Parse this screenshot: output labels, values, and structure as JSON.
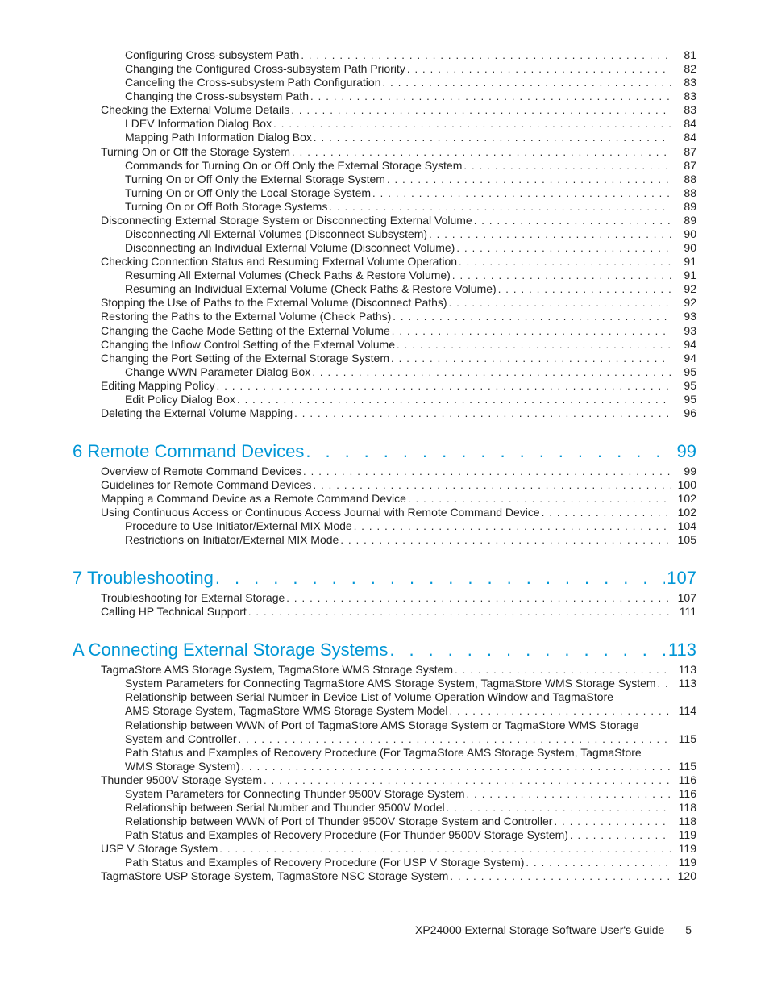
{
  "colors": {
    "accent": "#0096d6",
    "text": "#222222",
    "background": "#ffffff"
  },
  "typography": {
    "body_size_pt": 10,
    "chapter_size_pt": 17,
    "family": "Helvetica Neue Light"
  },
  "footer": {
    "title": "XP24000 External Storage Software User's Guide",
    "page": "5"
  },
  "sections": [
    {
      "type": "flat",
      "entries": [
        {
          "level": 1,
          "title": "Configuring Cross-subsystem Path",
          "page": "81"
        },
        {
          "level": 1,
          "title": "Changing the Configured Cross-subsystem Path Priority",
          "page": "82"
        },
        {
          "level": 1,
          "title": "Canceling the Cross-subsystem Path Configuration",
          "page": "83"
        },
        {
          "level": 1,
          "title": "Changing the Cross-subsystem Path",
          "page": "83"
        },
        {
          "level": 0,
          "title": "Checking the External Volume Details",
          "page": "83"
        },
        {
          "level": 1,
          "title": "LDEV Information Dialog Box",
          "page": "84"
        },
        {
          "level": 1,
          "title": "Mapping Path Information Dialog Box",
          "page": "84"
        },
        {
          "level": 0,
          "title": "Turning On or Off the Storage System",
          "page": "87"
        },
        {
          "level": 1,
          "title": "Commands for Turning On or Off Only the External Storage System",
          "page": "87"
        },
        {
          "level": 1,
          "title": "Turning On or Off Only the External Storage System",
          "page": "88"
        },
        {
          "level": 1,
          "title": "Turning On or Off Only the Local Storage System",
          "page": "88"
        },
        {
          "level": 1,
          "title": "Turning On or Off Both Storage Systems",
          "page": "89"
        },
        {
          "level": 0,
          "title": "Disconnecting External Storage System or Disconnecting External Volume",
          "page": "89"
        },
        {
          "level": 1,
          "title": "Disconnecting All External Volumes (Disconnect Subsystem)",
          "page": "90"
        },
        {
          "level": 1,
          "title": "Disconnecting an Individual External Volume (Disconnect Volume)",
          "page": "90"
        },
        {
          "level": 0,
          "title": "Checking Connection Status and Resuming External Volume Operation",
          "page": "91"
        },
        {
          "level": 1,
          "title": "Resuming All External Volumes (Check Paths & Restore Volume)",
          "page": "91"
        },
        {
          "level": 1,
          "title": "Resuming an Individual External Volume (Check Paths & Restore Volume)",
          "page": "92"
        },
        {
          "level": 0,
          "title": "Stopping the Use of Paths to the External Volume (Disconnect Paths)",
          "page": "92"
        },
        {
          "level": 0,
          "title": "Restoring the Paths to the External Volume (Check Paths)",
          "page": "93"
        },
        {
          "level": 0,
          "title": "Changing the Cache Mode Setting of the External Volume",
          "page": "93"
        },
        {
          "level": 0,
          "title": "Changing the Inflow Control Setting of the External Volume",
          "page": "94"
        },
        {
          "level": 0,
          "title": "Changing the Port Setting of the External Storage System",
          "page": "94"
        },
        {
          "level": 1,
          "title": "Change WWN Parameter Dialog Box",
          "page": "95"
        },
        {
          "level": 0,
          "title": "Editing Mapping Policy",
          "page": "95"
        },
        {
          "level": 1,
          "title": "Edit Policy Dialog Box",
          "page": "95"
        },
        {
          "level": 0,
          "title": "Deleting the External Volume Mapping",
          "page": "96"
        }
      ]
    },
    {
      "type": "chapter",
      "heading": {
        "title": "6 Remote Command Devices",
        "page": "99"
      },
      "entries": [
        {
          "level": 0,
          "title": "Overview of Remote Command Devices",
          "page": "99"
        },
        {
          "level": 0,
          "title": "Guidelines for Remote Command Devices",
          "page": "100"
        },
        {
          "level": 0,
          "title": "Mapping a Command Device as a Remote Command Device",
          "page": "102"
        },
        {
          "level": 0,
          "title": "Using Continuous Access or Continuous Access Journal with Remote Command Device",
          "page": "102"
        },
        {
          "level": 1,
          "title": "Procedure to Use Initiator/External MIX Mode",
          "page": "104"
        },
        {
          "level": 1,
          "title": "Restrictions on Initiator/External MIX Mode",
          "page": "105"
        }
      ]
    },
    {
      "type": "chapter",
      "heading": {
        "title": "7 Troubleshooting",
        "page": "107"
      },
      "entries": [
        {
          "level": 0,
          "title": "Troubleshooting for External Storage",
          "page": "107"
        },
        {
          "level": 0,
          "title": "Calling HP Technical Support",
          "page": "111"
        }
      ]
    },
    {
      "type": "chapter",
      "heading": {
        "title": "A Connecting External Storage Systems",
        "page": "113"
      },
      "entries": [
        {
          "level": 0,
          "title": "TagmaStore AMS Storage System, TagmaStore WMS Storage System",
          "page": "113"
        },
        {
          "level": 1,
          "title": "System Parameters for Connecting TagmaStore AMS Storage System, TagmaStore WMS Storage System",
          "page": "113"
        },
        {
          "level": 1,
          "title": "Relationship between Serial Number in Device List of Volume Operation Window and TagmaStore AMS Storage System, TagmaStore WMS Storage System Model",
          "page": "114"
        },
        {
          "level": 1,
          "title": "Relationship between WWN of Port of TagmaStore AMS Storage System or TagmaStore WMS Storage System and Controller",
          "page": "115"
        },
        {
          "level": 1,
          "title": "Path Status and Examples of Recovery Procedure (For TagmaStore AMS Storage System, TagmaStore WMS Storage System)",
          "page": "115"
        },
        {
          "level": 0,
          "title": "Thunder 9500V Storage System",
          "page": "116"
        },
        {
          "level": 1,
          "title": "System Parameters for Connecting Thunder 9500V Storage System",
          "page": "116"
        },
        {
          "level": 1,
          "title": "Relationship between Serial Number and Thunder 9500V Model",
          "page": "118"
        },
        {
          "level": 1,
          "title": "Relationship between WWN of Port of Thunder 9500V Storage System and Controller",
          "page": "118"
        },
        {
          "level": 1,
          "title": "Path Status and Examples of Recovery Procedure (For Thunder 9500V Storage System)",
          "page": "119"
        },
        {
          "level": 0,
          "title": "USP V Storage System",
          "page": "119"
        },
        {
          "level": 1,
          "title": "Path Status and Examples of Recovery Procedure (For USP V Storage System)",
          "page": "119"
        },
        {
          "level": 0,
          "title": "TagmaStore USP Storage System, TagmaStore NSC Storage System",
          "page": "120"
        }
      ]
    }
  ]
}
